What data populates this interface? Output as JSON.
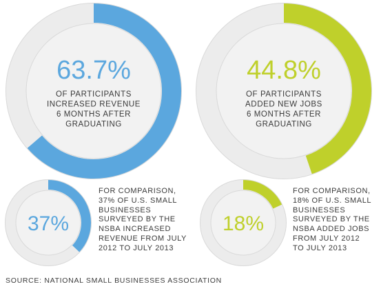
{
  "chart_data": [
    {
      "type": "donut",
      "value_percent": 63.7,
      "label": "63.7%",
      "caption": [
        "OF PARTICIPANTS",
        "INCREASED REVENUE",
        "6 MONTHS AFTER",
        "GRADUATING"
      ],
      "color": "#5ba7de"
    },
    {
      "type": "donut",
      "value_percent": 44.8,
      "label": "44.8%",
      "caption": [
        "OF PARTICIPANTS",
        "ADDED NEW JOBS",
        "6 MONTHS AFTER",
        "GRADUATING"
      ],
      "color": "#bfd02b"
    },
    {
      "type": "donut",
      "value_percent": 37,
      "label": "37%",
      "caption": [],
      "color": "#5ba7de"
    },
    {
      "type": "donut",
      "value_percent": 18,
      "label": "18%",
      "caption": [],
      "color": "#bfd02b"
    }
  ],
  "comparisons": {
    "left": "FOR COMPARISON,\n37% OF U.S. SMALL\nBUSINESSES\nSURVEYED BY THE\nNSBA INCREASED\nREVENUE FROM JULY\n2012 TO JULY 2013",
    "right": "FOR COMPARISON,\n18% OF U.S. SMALL\nBUSINESSES\nSURVEYED BY THE\nNSBA ADDED JOBS\nFROM JULY 2012\nTO JULY 2013"
  },
  "source": "SOURCE: NATIONAL SMALL BUSINESSES ASSOCIATION",
  "colors": {
    "ring_background": "#ececec",
    "ring_border": "#d9d9d9",
    "inner_fill": "#f2f2f2",
    "text": "#3a3a3a"
  }
}
